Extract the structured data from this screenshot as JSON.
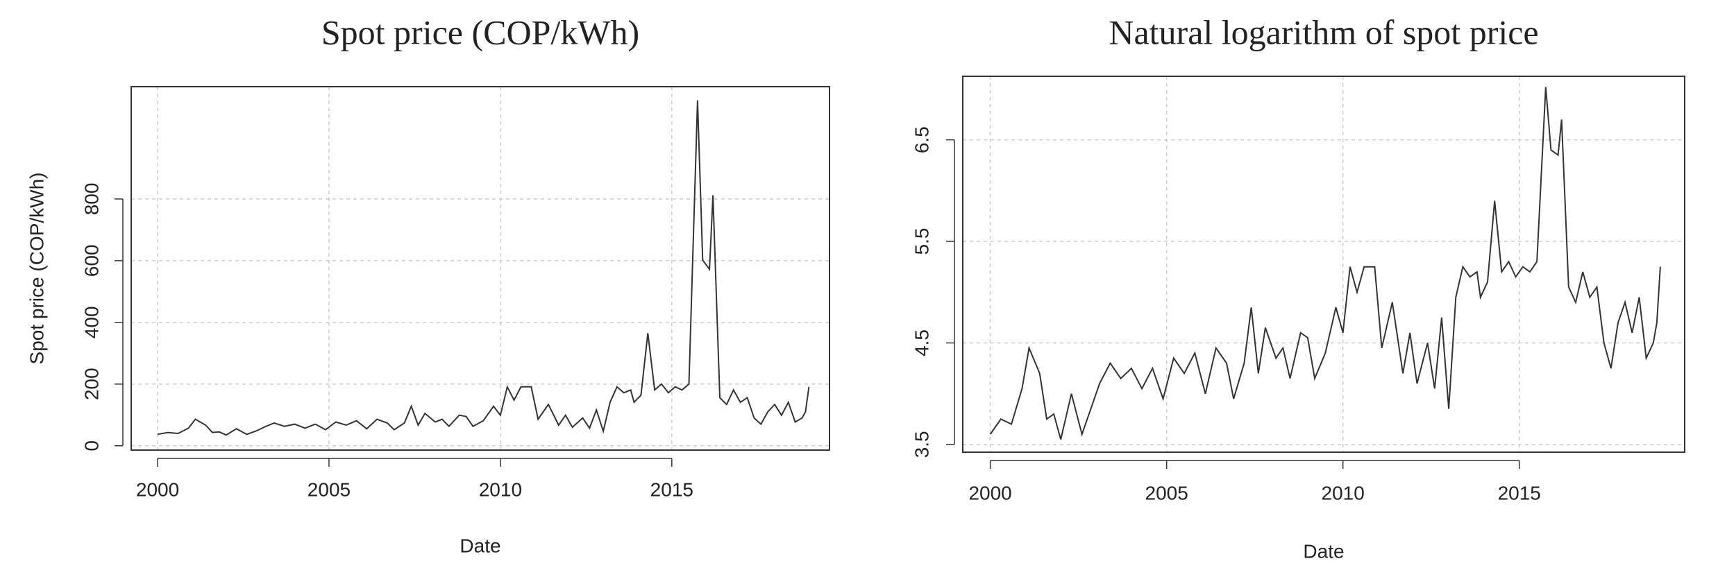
{
  "chart_data": [
    {
      "type": "line",
      "title": "Spot price (COP/kWh)",
      "xlabel": "Date",
      "ylabel": "Spot price (COP/kWh)",
      "xlim": [
        1999.23,
        2019.6
      ],
      "ylim": [
        -14,
        1164
      ],
      "xticks": [
        2000,
        2005,
        2010,
        2015
      ],
      "yticks": [
        0,
        200,
        400,
        600,
        800
      ],
      "grid": true,
      "color": "#333333",
      "x": [
        2000.0,
        2000.3,
        2000.6,
        2000.9,
        2001.1,
        2001.4,
        2001.6,
        2001.8,
        2002.0,
        2002.3,
        2002.6,
        2002.9,
        2003.1,
        2003.4,
        2003.7,
        2004.0,
        2004.3,
        2004.6,
        2004.9,
        2005.2,
        2005.5,
        2005.8,
        2006.1,
        2006.4,
        2006.7,
        2006.9,
        2007.2,
        2007.4,
        2007.6,
        2007.8,
        2008.1,
        2008.3,
        2008.5,
        2008.8,
        2009.0,
        2009.2,
        2009.5,
        2009.8,
        2010.0,
        2010.2,
        2010.4,
        2010.6,
        2010.9,
        2011.1,
        2011.4,
        2011.7,
        2011.9,
        2012.1,
        2012.4,
        2012.6,
        2012.8,
        2013.0,
        2013.2,
        2013.4,
        2013.6,
        2013.8,
        2013.9,
        2014.1,
        2014.3,
        2014.5,
        2014.7,
        2014.9,
        2015.1,
        2015.3,
        2015.5,
        2015.75,
        2015.9,
        2016.1,
        2016.2,
        2016.4,
        2016.6,
        2016.8,
        2017.0,
        2017.2,
        2017.4,
        2017.6,
        2017.8,
        2018.0,
        2018.2,
        2018.4,
        2018.6,
        2018.8,
        2018.9,
        2019.0
      ],
      "values": [
        37,
        43,
        40,
        57,
        86,
        67,
        43,
        45,
        35,
        55,
        37,
        49,
        60,
        74,
        63,
        70,
        57,
        70,
        52,
        77,
        67,
        81,
        55,
        86,
        74,
        52,
        74,
        128,
        67,
        105,
        77,
        86,
        63,
        99,
        95,
        63,
        81,
        128,
        99,
        191,
        148,
        191,
        191,
        86,
        134,
        67,
        99,
        60,
        90,
        57,
        116,
        47,
        141,
        191,
        172,
        181,
        141,
        164,
        365,
        181,
        200,
        172,
        191,
        181,
        200,
        1120,
        602,
        572,
        812,
        156,
        134,
        181,
        141,
        156,
        90,
        70,
        110,
        134,
        99,
        141,
        77,
        90,
        110,
        191
      ]
    },
    {
      "type": "line",
      "title": "Natural logarithm of spot price",
      "xlabel": "Date",
      "xlim": [
        1999.22,
        2019.69
      ],
      "ylim": [
        3.424,
        7.126
      ],
      "xticks": [
        2000,
        2005,
        2010,
        2015
      ],
      "yticks": [
        3.5,
        4.5,
        5.5,
        6.5
      ],
      "grid": true,
      "color": "#333333",
      "x": [
        2000.0,
        2000.3,
        2000.6,
        2000.9,
        2001.1,
        2001.4,
        2001.6,
        2001.8,
        2002.0,
        2002.3,
        2002.6,
        2002.9,
        2003.1,
        2003.4,
        2003.7,
        2004.0,
        2004.3,
        2004.6,
        2004.9,
        2005.2,
        2005.5,
        2005.8,
        2006.1,
        2006.4,
        2006.7,
        2006.9,
        2007.2,
        2007.4,
        2007.6,
        2007.8,
        2008.1,
        2008.3,
        2008.5,
        2008.8,
        2009.0,
        2009.2,
        2009.5,
        2009.8,
        2010.0,
        2010.2,
        2010.4,
        2010.6,
        2010.9,
        2011.1,
        2011.4,
        2011.7,
        2011.9,
        2012.1,
        2012.4,
        2012.6,
        2012.8,
        2013.0,
        2013.2,
        2013.4,
        2013.6,
        2013.8,
        2013.9,
        2014.1,
        2014.3,
        2014.5,
        2014.7,
        2014.9,
        2015.1,
        2015.3,
        2015.5,
        2015.75,
        2015.9,
        2016.1,
        2016.2,
        2016.4,
        2016.6,
        2016.8,
        2017.0,
        2017.2,
        2017.4,
        2017.6,
        2017.8,
        2018.0,
        2018.2,
        2018.4,
        2018.6,
        2018.8,
        2018.9,
        2019.0
      ],
      "values": [
        3.6,
        3.75,
        3.7,
        4.05,
        4.45,
        4.2,
        3.75,
        3.8,
        3.55,
        4.0,
        3.6,
        3.9,
        4.1,
        4.3,
        4.15,
        4.25,
        4.05,
        4.25,
        3.95,
        4.35,
        4.2,
        4.4,
        4.0,
        4.45,
        4.3,
        3.95,
        4.3,
        4.85,
        4.2,
        4.65,
        4.35,
        4.45,
        4.15,
        4.6,
        4.55,
        4.15,
        4.4,
        4.85,
        4.6,
        5.25,
        5.0,
        5.25,
        5.25,
        4.45,
        4.9,
        4.2,
        4.6,
        4.1,
        4.5,
        4.05,
        4.75,
        3.85,
        4.95,
        5.25,
        5.15,
        5.2,
        4.95,
        5.1,
        5.9,
        5.2,
        5.3,
        5.15,
        5.25,
        5.2,
        5.3,
        7.02,
        6.4,
        6.35,
        6.7,
        5.05,
        4.9,
        5.2,
        4.95,
        5.05,
        4.5,
        4.25,
        4.7,
        4.9,
        4.6,
        4.95,
        4.35,
        4.5,
        4.7,
        5.25
      ]
    }
  ]
}
